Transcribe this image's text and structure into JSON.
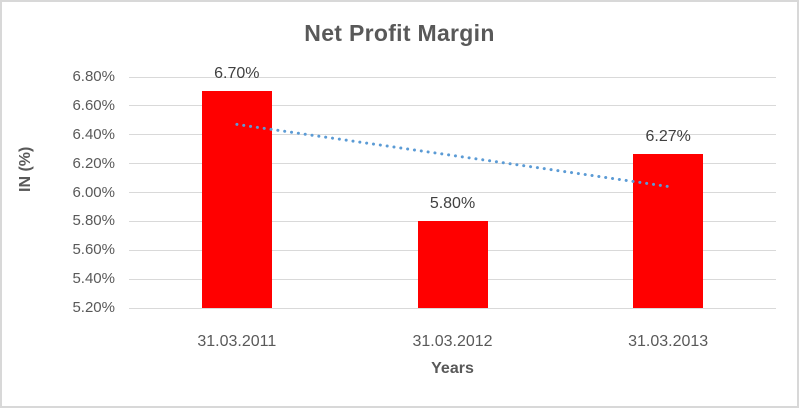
{
  "chart_data": {
    "type": "bar",
    "title": "Net Profit Margin",
    "xlabel": "Years",
    "ylabel": "IN (%)",
    "categories": [
      "31.03.2011",
      "31.03.2012",
      "31.03.2013"
    ],
    "values": [
      6.7,
      5.8,
      6.27
    ],
    "data_labels": [
      "6.70%",
      "5.80%",
      "6.27%"
    ],
    "ylim": [
      5.2,
      6.8
    ],
    "ytick_step": 0.2,
    "ytick_labels_top_to_bottom": [
      "6.80%",
      "6.60%",
      "6.40%",
      "6.20%",
      "6.00%",
      "5.80%",
      "5.60%",
      "5.40%",
      "5.20%"
    ],
    "grid": true,
    "legend_position": "none",
    "trendline": {
      "type": "linear",
      "style": "dotted",
      "series": "values",
      "color": "#5B9BD5"
    },
    "colors": {
      "bar": "#FF0000",
      "trendline": "#5B9BD5",
      "gridline": "#D9D9D9",
      "title_text": "#595959",
      "axis_text": "#595959",
      "data_label_text": "#404040",
      "chart_border": "#D8D8D8",
      "background": "#FFFFFF"
    }
  }
}
